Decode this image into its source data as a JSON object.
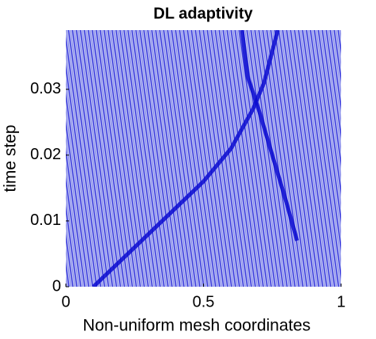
{
  "chart_data": {
    "type": "line",
    "title": "DL adaptivity",
    "xlabel": "Non-uniform mesh coordinates",
    "ylabel": "time step",
    "xlim": [
      0,
      1
    ],
    "ylim": [
      0,
      0.039
    ],
    "xticks": [
      0,
      0.5,
      1
    ],
    "yticks": [
      0,
      0.01,
      0.02,
      0.03
    ],
    "series": [
      {
        "color": "#0a0ad0",
        "x": [
          0.1,
          0.2,
          0.3,
          0.4,
          0.5,
          0.6,
          0.68,
          0.72,
          0.77
        ],
        "values": [
          0,
          0.004,
          0.008,
          0.012,
          0.016,
          0.021,
          0.027,
          0.031,
          0.039
        ]
      },
      {
        "color": "#0a0ad0",
        "x": [
          0.84,
          0.8,
          0.75,
          0.7,
          0.66,
          0.64
        ],
        "values": [
          0.007,
          0.013,
          0.02,
          0.027,
          0.032,
          0.039
        ]
      }
    ]
  }
}
